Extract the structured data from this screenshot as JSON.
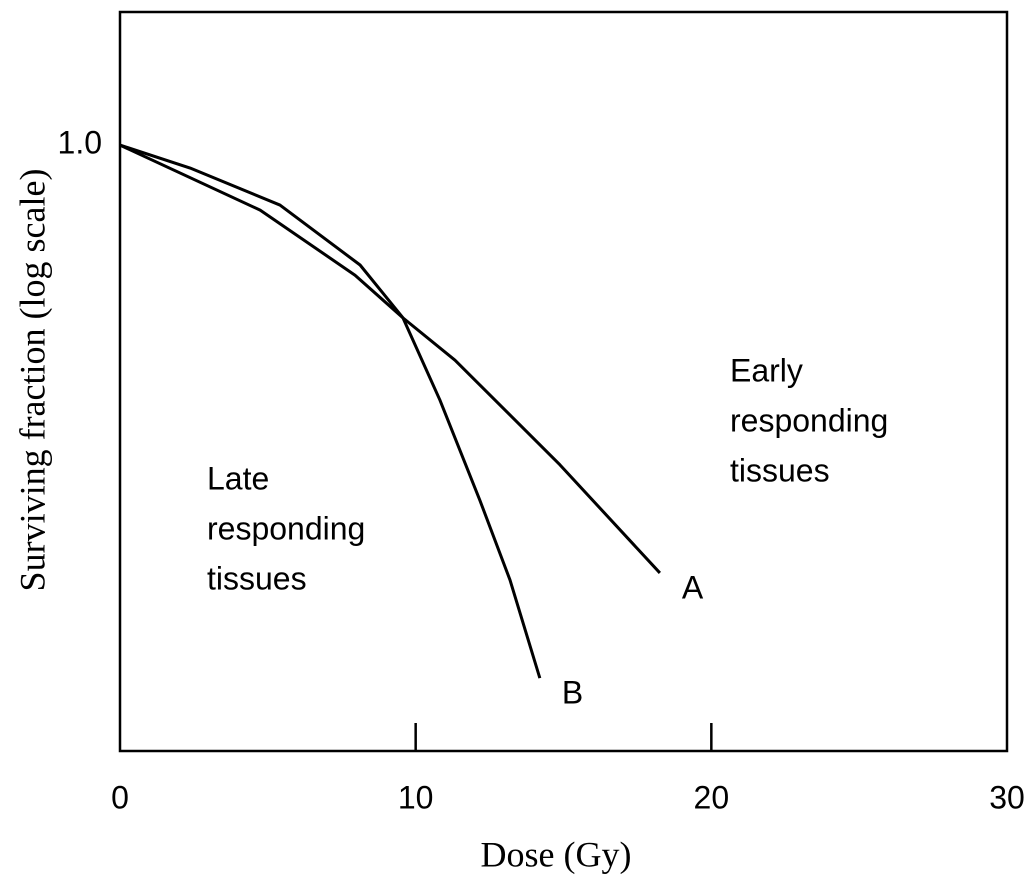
{
  "chart_data": {
    "type": "line",
    "xlabel": "Dose (Gy)",
    "ylabel": "Surviving fraction (log scale)",
    "xlim": [
      0,
      30
    ],
    "xticks": [
      0,
      10,
      20,
      30
    ],
    "ylim": [
      0.01,
      2.75
    ],
    "yticks": [
      {
        "value": 1,
        "label": "1.0"
      }
    ],
    "ylog": true,
    "grid": false,
    "series": [
      {
        "name": "A",
        "color": "#000000",
        "x": [
          0,
          4.74,
          7.95,
          9.57,
          11.33,
          14.88,
          18.26
        ],
        "values": [
          1.0,
          0.61,
          0.372,
          0.269,
          0.195,
          0.088,
          0.0387
        ]
      },
      {
        "name": "B",
        "color": "#000000",
        "x": [
          0,
          2.37,
          5.41,
          8.12,
          9.57,
          10.82,
          12.17,
          13.19,
          14.2
        ],
        "values": [
          1.0,
          0.84,
          0.634,
          0.402,
          0.269,
          0.144,
          0.0673,
          0.0367,
          0.0174
        ]
      }
    ],
    "annotations": [
      [
        "Early",
        "responding",
        "tissues"
      ],
      [
        "Late",
        "responding",
        "tissues"
      ]
    ]
  }
}
